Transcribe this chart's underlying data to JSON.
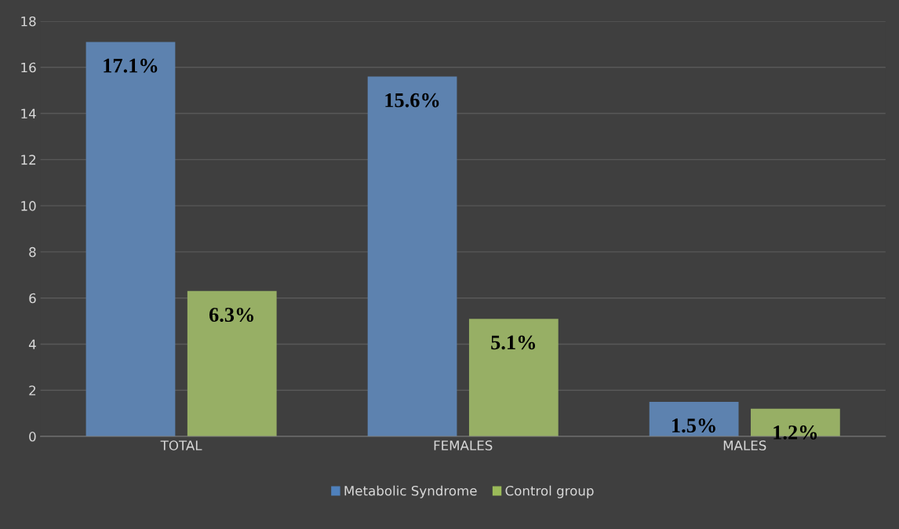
{
  "chart_data": {
    "type": "bar",
    "categories": [
      "TOTAL",
      "FEMALES",
      "MALES"
    ],
    "series": [
      {
        "name": "Metabolic Syndrome",
        "color": "#4f81bd",
        "values": [
          17.1,
          15.6,
          1.5
        ],
        "value_labels": [
          "17.1%",
          "15.6%",
          "1.5%"
        ]
      },
      {
        "name": "Control group",
        "color": "#9bbb59",
        "values": [
          6.3,
          5.1,
          1.2
        ],
        "value_labels": [
          "6.3%",
          "5.1%",
          "1.2%"
        ]
      }
    ],
    "ylim": [
      0,
      18
    ],
    "yticks": [
      0,
      2,
      4,
      6,
      8,
      10,
      12,
      14,
      16,
      18
    ],
    "grid": "y",
    "legend": "bottom"
  }
}
